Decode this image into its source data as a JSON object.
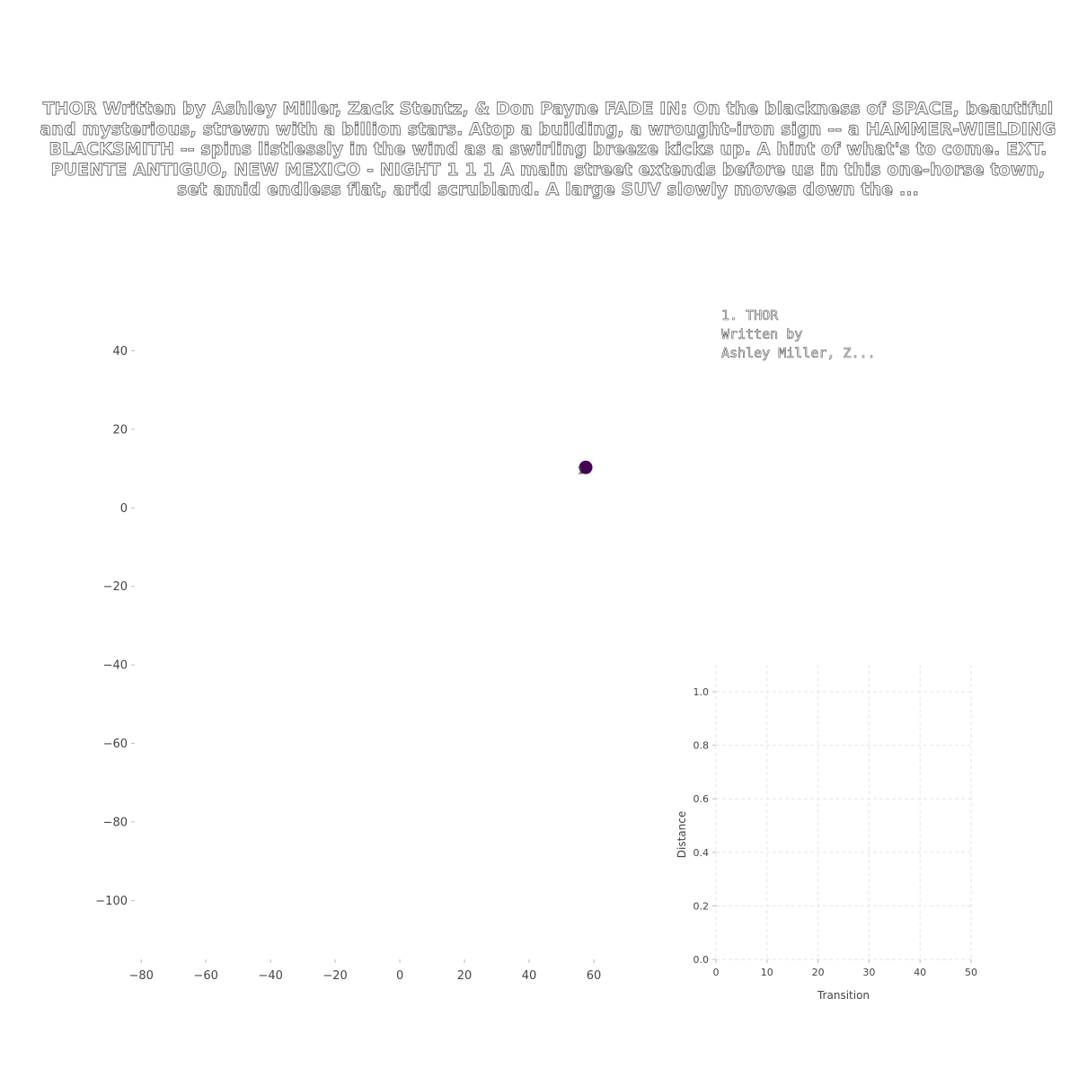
{
  "title": "THOR Written by Ashley Miller, Zack Stentz, & Don Payne FADE IN: On the blackness of SPACE, beautiful and mysterious, strewn  with a billion stars. Atop a building, a wrought-iron sign -- a HAMMER-WIELDING BLACKSMITH -- spins listlessly in the wind  as a swirling breeze kicks up. A hint of what's to come. EXT. PUENTE ANTIGUO, NEW MEXICO - NIGHT 1 1 1 A main street extends  before us in this one-horse town, set  amid endless flat, arid scrubland. A large SUV slowly moves  down the ...",
  "annotation": {
    "line1": "1. THOR",
    "line2": "Written by",
    "line3": "Ashley Miller, Z..."
  },
  "chart_data": [
    {
      "type": "scatter",
      "xlim": [
        -82,
        75
      ],
      "ylim": [
        -115,
        52
      ],
      "xticks": [
        -80,
        -60,
        -40,
        -20,
        0,
        20,
        40,
        60
      ],
      "yticks": [
        40,
        20,
        0,
        -20,
        -40,
        -60,
        -80,
        -100
      ],
      "xtick_labels": [
        "−80",
        "−60",
        "−40",
        "−20",
        "0",
        "20",
        "40",
        "60"
      ],
      "ytick_labels": [
        "40",
        "20",
        "0",
        "−20",
        "−40",
        "−60",
        "−80",
        "−100"
      ],
      "grid": false,
      "points": [
        {
          "x": 57.5,
          "y": 10.3,
          "label": "1",
          "color": "#440154"
        }
      ]
    },
    {
      "type": "line",
      "xlabel": "Transition",
      "ylabel": "Distance",
      "xlim": [
        0,
        50
      ],
      "ylim": [
        0,
        1.0
      ],
      "xticks": [
        0,
        10,
        20,
        30,
        40,
        50
      ],
      "yticks": [
        0.0,
        0.2,
        0.4,
        0.6,
        0.8,
        1.0
      ],
      "xtick_labels": [
        "0",
        "10",
        "20",
        "30",
        "40",
        "50"
      ],
      "ytick_labels": [
        "0.0",
        "0.2",
        "0.4",
        "0.6",
        "0.8",
        "1.0"
      ],
      "grid": true,
      "series": []
    }
  ]
}
